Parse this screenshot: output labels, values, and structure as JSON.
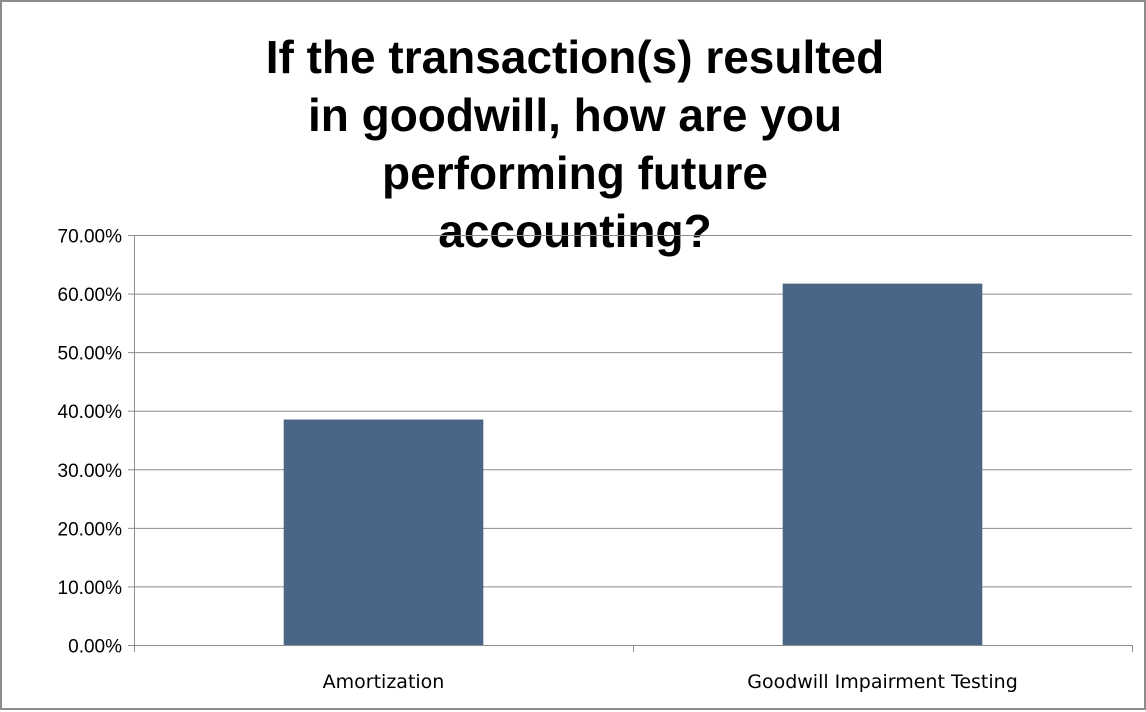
{
  "chart_data": {
    "type": "bar",
    "title": "If the transaction(s) resulted in goodwill, how are you performing future accounting?",
    "categories": [
      "Amortization",
      "Goodwill Impairment Testing"
    ],
    "values": [
      0.385,
      0.617
    ],
    "ylim": [
      0,
      0.7
    ],
    "yticks": [
      0,
      0.1,
      0.2,
      0.3,
      0.4,
      0.5,
      0.6,
      0.7
    ],
    "ytick_labels": [
      "0.00%",
      "10.00%",
      "20.00%",
      "30.00%",
      "40.00%",
      "50.00%",
      "60.00%",
      "70.00%"
    ],
    "bar_color": "#4a6686",
    "grid": true,
    "legend": "none"
  }
}
